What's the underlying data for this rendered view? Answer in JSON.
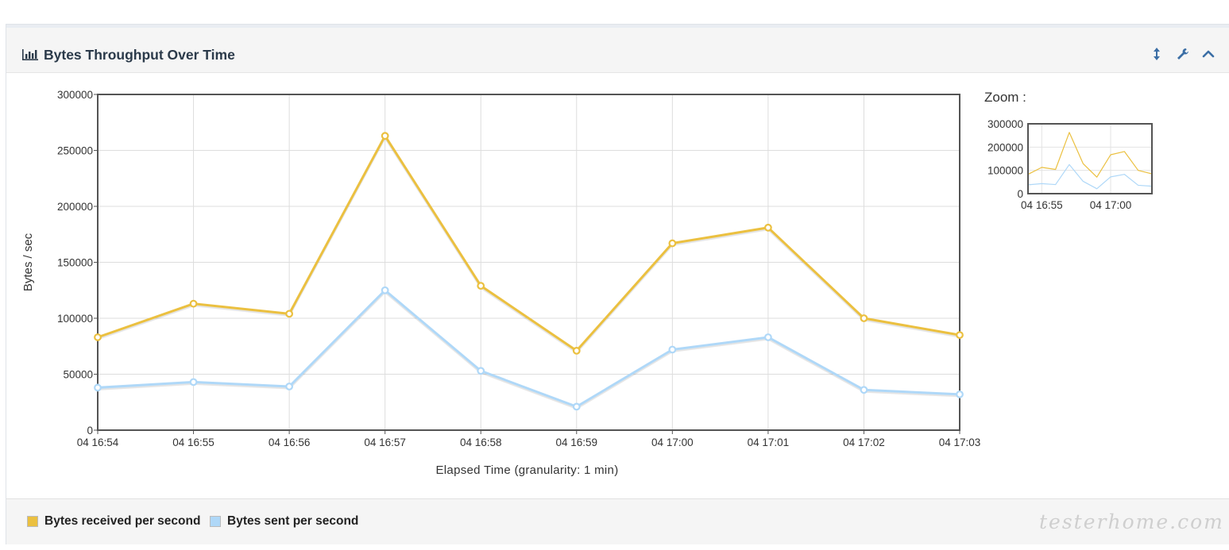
{
  "panel": {
    "title": "Bytes Throughput Over Time",
    "controls": {
      "resize_icon": "resize-vertical-icon",
      "settings_icon": "wrench-icon",
      "collapse_icon": "chevron-up-icon"
    }
  },
  "zoom": {
    "label": "Zoom :"
  },
  "legend": [
    {
      "label": "Bytes received per second",
      "color": "#ebc040"
    },
    {
      "label": "Bytes sent per second",
      "color": "#afd8f8"
    }
  ],
  "watermark": "testerhome.com",
  "chart_data": {
    "type": "line",
    "title": "Bytes Throughput Over Time",
    "xlabel": "Elapsed Time (granularity: 1 min)",
    "ylabel": "Bytes / sec",
    "x": [
      "04 16:54",
      "04 16:55",
      "04 16:56",
      "04 16:57",
      "04 16:58",
      "04 16:59",
      "04 17:00",
      "04 17:01",
      "04 17:02",
      "04 17:03"
    ],
    "ylim": [
      0,
      300000
    ],
    "yticks": [
      "300000",
      "250000",
      "200000",
      "150000",
      "100000",
      "50000",
      "0"
    ],
    "grid": true,
    "legend_position": "bottom",
    "series": [
      {
        "name": "Bytes received per second",
        "color": "#ebc040",
        "values": [
          83000,
          113000,
          104000,
          263000,
          129000,
          71000,
          167000,
          181000,
          100000,
          85000
        ]
      },
      {
        "name": "Bytes sent per second",
        "color": "#afd8f8",
        "values": [
          38000,
          43000,
          39000,
          125000,
          53000,
          21000,
          72000,
          83000,
          36000,
          32000
        ]
      }
    ],
    "zoom": {
      "yticks": [
        "300000",
        "200000",
        "100000",
        "0"
      ],
      "xticks": [
        "04 16:55",
        "04 17:00"
      ]
    }
  }
}
